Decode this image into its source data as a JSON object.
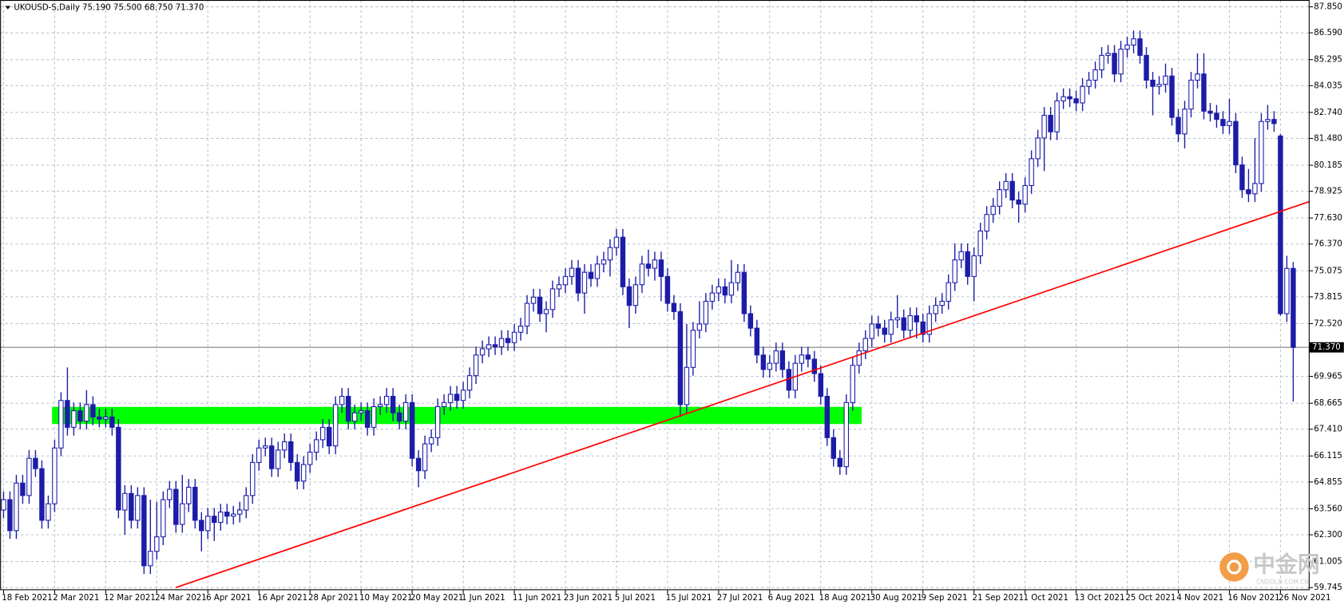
{
  "chart_data": {
    "type": "candlestick",
    "title": "UKOUSD-S,Daily  75.190 75.500 68.750 71.370",
    "color": "#1c1ca8",
    "grid": true,
    "ylim": [
      59.62,
      88.18
    ],
    "yticks": [
      {
        "value": 87.85,
        "label": "87.850"
      },
      {
        "value": 86.59,
        "label": "86.590"
      },
      85.295,
      84.035,
      {
        "value": 82.74,
        "label": "82.740"
      },
      {
        "value": 81.48,
        "label": "81.480"
      },
      80.185,
      78.925,
      {
        "value": 77.63,
        "label": "77.630"
      },
      {
        "value": 76.37,
        "label": "76.370"
      },
      75.075,
      73.815,
      {
        "value": 72.52,
        "label": "72.520"
      },
      69.965,
      68.665,
      {
        "value": 67.41,
        "label": "67.410"
      },
      66.115,
      64.855,
      {
        "value": 63.56,
        "label": "63.560"
      },
      {
        "value": 62.3,
        "label": "62.300"
      },
      61.005,
      59.745
    ],
    "last_price": {
      "value": 71.37,
      "label": "71.370"
    },
    "trendline": {
      "color": "#ff0000",
      "points": [
        [
          27,
          59.75
        ],
        [
          210,
          79.0
        ]
      ]
    },
    "zone": {
      "color": "#00ff00",
      "bars": [
        8,
        134
      ],
      "range": [
        67.66,
        68.49
      ]
    },
    "watermark": [
      "中金网",
      "CNGOLD.COM.CN"
    ],
    "categories": [
      "18 Feb 2021",
      null,
      null,
      null,
      null,
      null,
      null,
      null,
      "2 Mar 2021",
      null,
      null,
      null,
      null,
      null,
      null,
      null,
      "12 Mar 2021",
      null,
      null,
      null,
      null,
      null,
      null,
      null,
      "24 Mar 2021",
      null,
      null,
      null,
      null,
      null,
      null,
      null,
      "6 Apr 2021",
      null,
      null,
      null,
      null,
      null,
      null,
      null,
      "16 Apr 2021",
      null,
      null,
      null,
      null,
      null,
      null,
      null,
      "28 Apr 2021",
      null,
      null,
      null,
      null,
      null,
      null,
      null,
      "10 May 2021",
      null,
      null,
      null,
      null,
      null,
      null,
      null,
      "20 May 2021",
      null,
      null,
      null,
      null,
      null,
      null,
      null,
      "1 Jun 2021",
      null,
      null,
      null,
      null,
      null,
      null,
      null,
      "11 Jun 2021",
      null,
      null,
      null,
      null,
      null,
      null,
      null,
      "23 Jun 2021",
      null,
      null,
      null,
      null,
      null,
      null,
      null,
      "5 Jul 2021",
      null,
      null,
      null,
      null,
      null,
      null,
      null,
      "15 Jul 2021",
      null,
      null,
      null,
      null,
      null,
      null,
      null,
      "27 Jul 2021",
      null,
      null,
      null,
      null,
      null,
      null,
      null,
      "6 Aug 2021",
      null,
      null,
      null,
      null,
      null,
      null,
      null,
      "18 Aug 2021",
      null,
      null,
      null,
      null,
      null,
      null,
      null,
      "30 Aug 2021",
      null,
      null,
      null,
      null,
      null,
      null,
      null,
      "9 Sep 2021",
      null,
      null,
      null,
      null,
      null,
      null,
      null,
      "21 Sep 2021",
      null,
      null,
      null,
      null,
      null,
      null,
      null,
      "1 Oct 2021",
      null,
      null,
      null,
      null,
      null,
      null,
      null,
      "13 Oct 2021",
      null,
      null,
      null,
      null,
      null,
      null,
      null,
      "25 Oct 2021",
      null,
      null,
      null,
      null,
      null,
      null,
      null,
      "4 Nov 2021",
      null,
      null,
      null,
      null,
      null,
      null,
      null,
      "16 Nov 2021",
      null,
      null,
      null,
      null,
      null,
      null,
      null,
      "26 Nov 2021",
      null,
      null
    ],
    "ohlc": [
      [
        63.5,
        64.4,
        63.1,
        64.0
      ],
      [
        64.0,
        64.4,
        62.1,
        62.5
      ],
      [
        62.5,
        65.2,
        62.1,
        64.8
      ],
      [
        64.8,
        65.2,
        63.8,
        64.2
      ],
      [
        64.2,
        66.4,
        63.8,
        66.0
      ],
      [
        66.0,
        66.4,
        65.1,
        65.5
      ],
      [
        65.5,
        65.9,
        62.6,
        63.0
      ],
      [
        63.0,
        64.2,
        62.6,
        63.8
      ],
      [
        63.8,
        66.9,
        63.4,
        66.5
      ],
      [
        66.5,
        69.2,
        66.1,
        68.8
      ],
      [
        68.8,
        70.4,
        67.1,
        67.5
      ],
      [
        67.5,
        68.7,
        67.1,
        68.3
      ],
      [
        68.3,
        68.7,
        67.4,
        67.8
      ],
      [
        67.8,
        69.3,
        67.4,
        68.6
      ],
      [
        68.6,
        69.0,
        67.6,
        68.0
      ],
      [
        68.0,
        68.4,
        67.5,
        67.9
      ],
      [
        67.9,
        68.4,
        67.5,
        68.0
      ],
      [
        68.0,
        68.4,
        67.1,
        67.5
      ],
      [
        67.5,
        67.9,
        63.1,
        63.5
      ],
      [
        63.5,
        64.7,
        62.3,
        64.3
      ],
      [
        64.3,
        64.7,
        62.6,
        63.0
      ],
      [
        63.0,
        64.6,
        62.6,
        64.2
      ],
      [
        64.2,
        64.6,
        60.4,
        60.8
      ],
      [
        60.8,
        64.0,
        60.4,
        61.5
      ],
      [
        61.5,
        63.9,
        61.1,
        62.2
      ],
      [
        62.2,
        64.4,
        61.8,
        64.0
      ],
      [
        64.0,
        64.9,
        63.6,
        64.5
      ],
      [
        64.5,
        64.9,
        62.4,
        62.8
      ],
      [
        62.8,
        65.2,
        62.4,
        63.8
      ],
      [
        63.8,
        65.0,
        63.4,
        64.6
      ],
      [
        64.6,
        65.0,
        62.6,
        63.0
      ],
      [
        63.0,
        63.4,
        61.5,
        62.5
      ],
      [
        62.5,
        63.6,
        62.1,
        63.2
      ],
      [
        63.2,
        63.6,
        62.0,
        62.9
      ],
      [
        62.9,
        63.8,
        62.5,
        63.4
      ],
      [
        63.4,
        63.8,
        62.8,
        63.2
      ],
      [
        63.2,
        63.7,
        62.8,
        63.3
      ],
      [
        63.3,
        63.9,
        62.9,
        63.5
      ],
      [
        63.5,
        64.6,
        63.1,
        64.2
      ],
      [
        64.2,
        66.2,
        63.8,
        65.8
      ],
      [
        65.8,
        66.9,
        65.4,
        66.5
      ],
      [
        66.5,
        67.0,
        66.1,
        66.6
      ],
      [
        66.6,
        67.0,
        65.1,
        65.5
      ],
      [
        65.5,
        66.8,
        65.1,
        66.4
      ],
      [
        66.4,
        67.2,
        66.0,
        66.8
      ],
      [
        66.8,
        67.2,
        65.4,
        65.8
      ],
      [
        65.8,
        66.2,
        64.5,
        64.9
      ],
      [
        64.9,
        66.1,
        64.5,
        65.7
      ],
      [
        65.7,
        66.7,
        65.3,
        66.3
      ],
      [
        66.3,
        67.3,
        65.9,
        66.9
      ],
      [
        66.9,
        67.9,
        66.5,
        67.5
      ],
      [
        67.5,
        67.9,
        66.2,
        66.6
      ],
      [
        66.6,
        69.0,
        66.2,
        68.6
      ],
      [
        68.6,
        69.4,
        68.2,
        69.0
      ],
      [
        69.0,
        69.4,
        67.4,
        67.8
      ],
      [
        67.8,
        68.6,
        67.4,
        68.2
      ],
      [
        68.2,
        68.7,
        67.8,
        68.3
      ],
      [
        68.3,
        68.7,
        67.1,
        67.5
      ],
      [
        67.5,
        68.9,
        67.1,
        68.5
      ],
      [
        68.5,
        69.0,
        68.1,
        68.6
      ],
      [
        68.6,
        69.4,
        68.2,
        69.0
      ],
      [
        69.0,
        69.4,
        67.8,
        68.2
      ],
      [
        68.2,
        68.6,
        67.4,
        67.8
      ],
      [
        67.8,
        69.1,
        67.4,
        68.7
      ],
      [
        68.7,
        69.1,
        65.6,
        66.0
      ],
      [
        66.0,
        66.4,
        64.6,
        65.4
      ],
      [
        65.4,
        67.1,
        65.0,
        66.7
      ],
      [
        66.7,
        67.4,
        66.3,
        67.0
      ],
      [
        67.0,
        68.9,
        66.6,
        68.5
      ],
      [
        68.5,
        69.1,
        68.1,
        68.7
      ],
      [
        68.7,
        69.5,
        68.3,
        69.1
      ],
      [
        69.1,
        69.5,
        68.4,
        68.8
      ],
      [
        68.8,
        69.7,
        68.4,
        69.3
      ],
      [
        69.3,
        70.4,
        68.9,
        70.0
      ],
      [
        70.0,
        71.4,
        69.6,
        71.0
      ],
      [
        71.0,
        71.7,
        70.6,
        71.3
      ],
      [
        71.3,
        71.9,
        70.9,
        71.5
      ],
      [
        71.5,
        71.9,
        71.0,
        71.4
      ],
      [
        71.4,
        72.2,
        71.0,
        71.8
      ],
      [
        71.8,
        72.2,
        71.2,
        71.6
      ],
      [
        71.6,
        72.5,
        71.2,
        72.1
      ],
      [
        72.1,
        72.8,
        71.7,
        72.4
      ],
      [
        72.4,
        73.9,
        72.0,
        73.5
      ],
      [
        73.5,
        74.2,
        73.1,
        73.8
      ],
      [
        73.8,
        74.2,
        72.6,
        73.0
      ],
      [
        73.0,
        73.6,
        72.1,
        73.2
      ],
      [
        73.2,
        74.6,
        72.8,
        74.2
      ],
      [
        74.2,
        74.8,
        73.8,
        74.4
      ],
      [
        74.4,
        75.2,
        74.0,
        74.8
      ],
      [
        74.8,
        75.6,
        74.4,
        75.2
      ],
      [
        75.2,
        75.6,
        73.6,
        74.0
      ],
      [
        74.0,
        75.4,
        73.0,
        75.0
      ],
      [
        75.0,
        75.4,
        74.3,
        74.7
      ],
      [
        74.7,
        75.8,
        74.3,
        75.4
      ],
      [
        75.4,
        76.0,
        75.0,
        75.6
      ],
      [
        75.6,
        76.6,
        74.8,
        76.2
      ],
      [
        76.2,
        77.1,
        75.8,
        76.7
      ],
      [
        76.7,
        77.1,
        73.9,
        74.3
      ],
      [
        74.3,
        74.7,
        72.3,
        73.4
      ],
      [
        73.4,
        74.8,
        73.0,
        74.4
      ],
      [
        74.4,
        75.8,
        74.0,
        75.4
      ],
      [
        75.4,
        76.1,
        74.8,
        75.2
      ],
      [
        75.2,
        76.0,
        74.6,
        75.6
      ],
      [
        75.6,
        76.0,
        73.6,
        74.8
      ],
      [
        74.8,
        75.2,
        73.1,
        73.5
      ],
      [
        73.5,
        73.9,
        72.7,
        73.1
      ],
      [
        73.1,
        73.5,
        68.0,
        68.6
      ],
      [
        68.6,
        72.5,
        68.2,
        70.4
      ],
      [
        70.4,
        72.6,
        70.0,
        72.2
      ],
      [
        72.2,
        73.6,
        71.8,
        72.5
      ],
      [
        72.5,
        74.0,
        72.1,
        73.6
      ],
      [
        73.6,
        74.4,
        73.2,
        74.0
      ],
      [
        74.0,
        74.7,
        73.6,
        74.3
      ],
      [
        74.3,
        74.7,
        73.5,
        73.9
      ],
      [
        73.9,
        75.6,
        73.5,
        74.5
      ],
      [
        74.5,
        75.4,
        74.1,
        75.0
      ],
      [
        75.0,
        75.4,
        72.6,
        73.0
      ],
      [
        73.0,
        73.4,
        71.9,
        72.3
      ],
      [
        72.3,
        72.7,
        70.6,
        71.0
      ],
      [
        71.0,
        71.4,
        69.9,
        70.3
      ],
      [
        70.3,
        71.0,
        69.9,
        70.6
      ],
      [
        70.6,
        71.6,
        70.2,
        71.2
      ],
      [
        71.2,
        71.6,
        69.9,
        70.3
      ],
      [
        70.3,
        70.7,
        68.9,
        69.3
      ],
      [
        69.3,
        71.0,
        68.9,
        70.6
      ],
      [
        70.6,
        71.4,
        70.2,
        71.0
      ],
      [
        71.0,
        71.4,
        70.4,
        70.8
      ],
      [
        70.8,
        71.2,
        69.7,
        70.1
      ],
      [
        70.1,
        70.5,
        68.6,
        69.0
      ],
      [
        69.0,
        69.4,
        66.6,
        67.0
      ],
      [
        67.0,
        67.4,
        65.6,
        66.0
      ],
      [
        66.0,
        66.4,
        65.2,
        65.6
      ],
      [
        65.6,
        69.1,
        65.2,
        68.7
      ],
      [
        68.7,
        70.9,
        68.3,
        70.5
      ],
      [
        70.5,
        71.6,
        70.1,
        71.2
      ],
      [
        71.2,
        72.2,
        70.8,
        71.8
      ],
      [
        71.8,
        72.9,
        71.4,
        72.5
      ],
      [
        72.5,
        72.9,
        71.9,
        72.3
      ],
      [
        72.3,
        72.7,
        71.6,
        72.0
      ],
      [
        72.0,
        73.1,
        71.6,
        72.7
      ],
      [
        72.7,
        73.9,
        72.3,
        72.8
      ],
      [
        72.8,
        73.2,
        71.8,
        72.2
      ],
      [
        72.2,
        73.3,
        71.8,
        72.9
      ],
      [
        72.9,
        73.3,
        71.8,
        72.6
      ],
      [
        72.6,
        73.0,
        71.6,
        72.0
      ],
      [
        72.0,
        73.4,
        71.6,
        73.0
      ],
      [
        73.0,
        73.8,
        72.6,
        73.4
      ],
      [
        73.4,
        74.0,
        73.0,
        73.6
      ],
      [
        73.6,
        74.9,
        73.2,
        74.5
      ],
      [
        74.5,
        76.4,
        74.1,
        75.6
      ],
      [
        75.6,
        76.4,
        75.2,
        76.0
      ],
      [
        76.0,
        76.4,
        74.4,
        74.8
      ],
      [
        74.8,
        76.2,
        73.6,
        75.8
      ],
      [
        75.8,
        77.4,
        75.4,
        77.0
      ],
      [
        77.0,
        78.2,
        76.6,
        77.8
      ],
      [
        77.8,
        78.6,
        77.4,
        78.2
      ],
      [
        78.2,
        79.4,
        77.8,
        79.0
      ],
      [
        79.0,
        79.8,
        78.6,
        79.4
      ],
      [
        79.4,
        79.8,
        78.1,
        78.5
      ],
      [
        78.5,
        78.9,
        77.4,
        78.3
      ],
      [
        78.3,
        79.6,
        77.9,
        79.2
      ],
      [
        79.2,
        80.9,
        78.8,
        80.5
      ],
      [
        80.5,
        81.9,
        80.1,
        81.5
      ],
      [
        81.5,
        83.0,
        79.9,
        82.6
      ],
      [
        82.6,
        83.0,
        81.4,
        81.8
      ],
      [
        81.8,
        83.7,
        81.4,
        83.3
      ],
      [
        83.3,
        83.9,
        82.9,
        83.5
      ],
      [
        83.5,
        83.9,
        83.0,
        83.4
      ],
      [
        83.4,
        83.8,
        82.8,
        83.2
      ],
      [
        83.2,
        84.4,
        82.8,
        84.0
      ],
      [
        84.0,
        84.7,
        83.6,
        84.3
      ],
      [
        84.3,
        85.2,
        83.9,
        84.8
      ],
      [
        84.8,
        85.9,
        84.4,
        85.5
      ],
      [
        85.5,
        86.0,
        85.1,
        85.6
      ],
      [
        85.6,
        86.0,
        84.2,
        84.6
      ],
      [
        84.6,
        86.2,
        84.2,
        85.8
      ],
      [
        85.8,
        86.4,
        85.4,
        86.0
      ],
      [
        86.0,
        86.7,
        85.6,
        86.3
      ],
      [
        86.3,
        86.7,
        85.1,
        85.5
      ],
      [
        85.5,
        85.9,
        83.9,
        84.3
      ],
      [
        84.3,
        84.7,
        82.6,
        84.0
      ],
      [
        84.0,
        84.5,
        83.6,
        84.1
      ],
      [
        84.1,
        85.1,
        83.7,
        84.5
      ],
      [
        84.5,
        84.9,
        82.1,
        82.5
      ],
      [
        82.5,
        82.9,
        81.3,
        81.7
      ],
      [
        81.7,
        83.3,
        81.0,
        82.9
      ],
      [
        82.9,
        84.7,
        82.5,
        84.3
      ],
      [
        84.3,
        85.6,
        83.9,
        84.6
      ],
      [
        84.6,
        85.6,
        82.4,
        82.8
      ],
      [
        82.8,
        83.2,
        82.3,
        82.7
      ],
      [
        82.7,
        83.1,
        82.0,
        82.4
      ],
      [
        82.4,
        82.8,
        81.7,
        82.1
      ],
      [
        82.1,
        83.4,
        81.7,
        82.3
      ],
      [
        82.3,
        82.7,
        79.8,
        80.2
      ],
      [
        80.2,
        80.6,
        78.6,
        79.0
      ],
      [
        79.0,
        80.0,
        78.4,
        78.8
      ],
      [
        78.8,
        81.5,
        78.4,
        79.3
      ],
      [
        79.3,
        82.7,
        78.9,
        82.3
      ],
      [
        82.3,
        83.1,
        81.9,
        82.4
      ],
      [
        82.4,
        82.8,
        81.8,
        82.2
      ],
      [
        81.6,
        81.7,
        72.9,
        73.0
      ],
      [
        73.0,
        75.8,
        72.6,
        75.19
      ],
      [
        75.19,
        75.5,
        68.75,
        71.37
      ]
    ]
  }
}
